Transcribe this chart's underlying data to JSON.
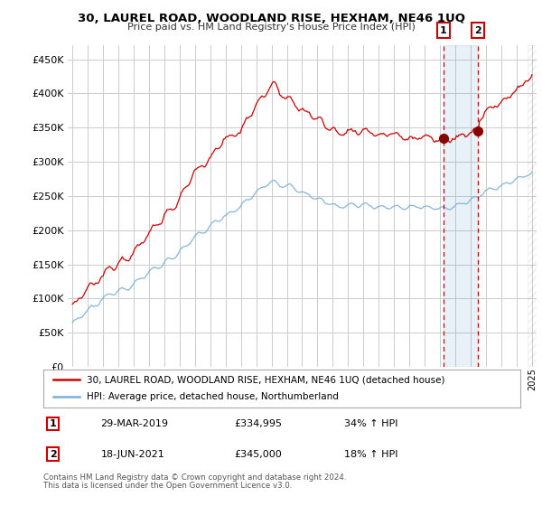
{
  "title": "30, LAUREL ROAD, WOODLAND RISE, HEXHAM, NE46 1UQ",
  "subtitle": "Price paid vs. HM Land Registry's House Price Index (HPI)",
  "red_label": "30, LAUREL ROAD, WOODLAND RISE, HEXHAM, NE46 1UQ (detached house)",
  "blue_label": "HPI: Average price, detached house, Northumberland",
  "transaction1_date": "29-MAR-2019",
  "transaction1_price": "£334,995",
  "transaction1_hpi": "34% ↑ HPI",
  "transaction2_date": "18-JUN-2021",
  "transaction2_price": "£345,000",
  "transaction2_hpi": "18% ↑ HPI",
  "footer": "Contains HM Land Registry data © Crown copyright and database right 2024.\nThis data is licensed under the Open Government Licence v3.0.",
  "ylim": [
    0,
    470000
  ],
  "yticks": [
    0,
    50000,
    100000,
    150000,
    200000,
    250000,
    300000,
    350000,
    400000,
    450000
  ],
  "background_color": "#ffffff",
  "grid_color": "#cccccc",
  "red_color": "#cc0000",
  "blue_color": "#7aaed6",
  "marker1_year": 2019.23,
  "marker2_year": 2021.47,
  "xmin": 1995,
  "xmax": 2025
}
